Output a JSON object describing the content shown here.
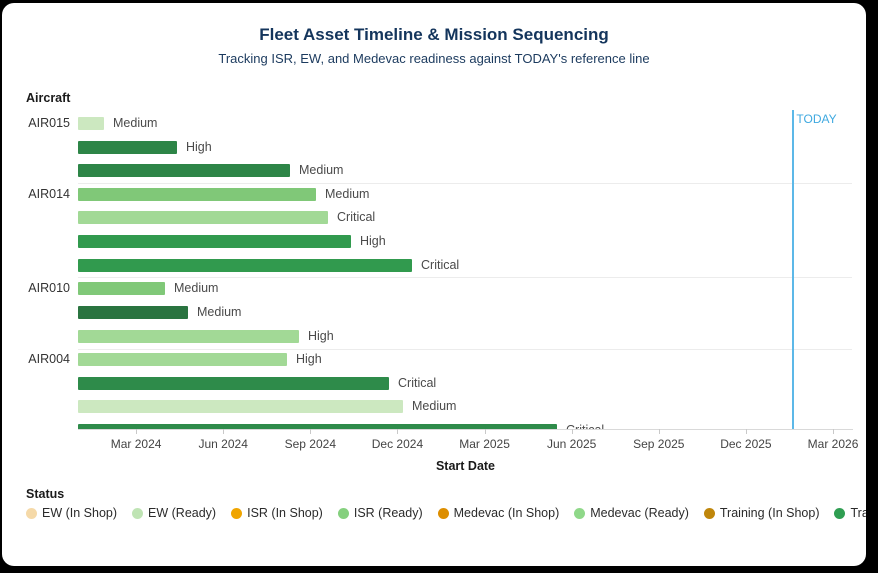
{
  "header": {
    "title": "Fleet Asset Timeline & Mission Sequencing",
    "subtitle": "Tracking ISR, EW, and Medevac readiness against TODAY's reference line",
    "title_color": "#14355c"
  },
  "chart_data": {
    "type": "bar",
    "variant": "horizontal-gantt-timeline",
    "title": "Fleet Asset Timeline & Mission Sequencing",
    "subtitle": "Tracking ISR, EW, and Medevac readiness against TODAY's reference line",
    "xlabel": "Start Date",
    "ylabel": "Aircraft",
    "grid": "off",
    "x_tick_labels": [
      "Mar 2024",
      "Jun 2024",
      "Sep 2024",
      "Dec 2024",
      "Mar 2025",
      "Jun 2025",
      "Sep 2025",
      "Dec 2025",
      "Mar 2026"
    ],
    "x_tick_months_from_2024_01": [
      2,
      5,
      8,
      11,
      14,
      17,
      20,
      23,
      26
    ],
    "x_domain": {
      "start": "2024-01-01",
      "end_approx": "2026-03-22"
    },
    "today_marker": {
      "label": "TODAY",
      "date_est": "2026-01-19",
      "month_offset": 24.6,
      "line_color": "#5cb8e8",
      "text_color": "#3fa9e0"
    },
    "groups": [
      {
        "aircraft": "AIR015",
        "bars": [
          {
            "label": "Medium",
            "status": "EW (Ready)",
            "start": "2024-01-01",
            "end_est": "2024-01-28",
            "duration_months": 0.9,
            "color": "#cce8c0"
          },
          {
            "label": "High",
            "status": "Training (Ready)",
            "start": "2024-01-01",
            "end_est": "2024-04-13",
            "duration_months": 3.4,
            "color": "#2d8547"
          },
          {
            "label": "Medium",
            "status": "Training (Ready)",
            "start": "2024-01-01",
            "end_est": "2024-08-10",
            "duration_months": 7.3,
            "color": "#2d8547"
          }
        ]
      },
      {
        "aircraft": "AIR014",
        "bars": [
          {
            "label": "Medium",
            "status": "ISR (Ready)",
            "start": "2024-01-01",
            "end_est": "2024-09-07",
            "duration_months": 8.2,
            "color": "#80c878"
          },
          {
            "label": "Critical",
            "status": "Medevac (Ready)",
            "start": "2024-01-01",
            "end_est": "2024-09-19",
            "duration_months": 8.6,
            "color": "#a2d996"
          },
          {
            "label": "High",
            "status": "Training (Ready)",
            "start": "2024-01-01",
            "end_est": "2024-10-13",
            "duration_months": 9.4,
            "color": "#319a4e"
          },
          {
            "label": "Critical",
            "status": "Training (Ready)",
            "start": "2024-01-01",
            "end_est": "2024-12-16",
            "duration_months": 11.5,
            "color": "#319a4e"
          }
        ]
      },
      {
        "aircraft": "AIR010",
        "bars": [
          {
            "label": "Medium",
            "status": "ISR (Ready)",
            "start": "2024-01-01",
            "end_est": "2024-04-01",
            "duration_months": 3.0,
            "color": "#80c878"
          },
          {
            "label": "Medium",
            "status": "Training (Ready)",
            "start": "2024-01-01",
            "end_est": "2024-04-25",
            "duration_months": 3.8,
            "color": "#2a7440"
          },
          {
            "label": "High",
            "status": "Medevac (Ready)",
            "start": "2024-01-01",
            "end_est": "2024-08-19",
            "duration_months": 7.6,
            "color": "#a2d996"
          }
        ]
      },
      {
        "aircraft": "AIR004",
        "bars": [
          {
            "label": "High",
            "status": "Medevac (Ready)",
            "start": "2024-01-01",
            "end_est": "2024-08-07",
            "duration_months": 7.2,
            "color": "#a2d996"
          },
          {
            "label": "Critical",
            "status": "Training (Ready)",
            "start": "2024-01-01",
            "end_est": "2024-11-22",
            "duration_months": 10.7,
            "color": "#2e8b4a"
          },
          {
            "label": "Medium",
            "status": "EW (Ready)",
            "start": "2024-01-01",
            "end_est": "2024-12-07",
            "duration_months": 11.2,
            "color": "#cce8c0"
          },
          {
            "label": "Critical",
            "status": "Training (Ready)",
            "start": "2024-01-01",
            "end_est": "2025-05-16",
            "duration_months": 16.5,
            "color": "#2e8b4a",
            "clipped_by_axis": true
          }
        ]
      }
    ],
    "legend": {
      "title": "Status",
      "position": "bottom",
      "items": [
        {
          "label": "EW (In Shop)",
          "color": "#f5d9a8"
        },
        {
          "label": "EW (Ready)",
          "color": "#bfe4b4"
        },
        {
          "label": "ISR (In Shop)",
          "color": "#f0a500"
        },
        {
          "label": "ISR (Ready)",
          "color": "#85d07e"
        },
        {
          "label": "Medevac (In Shop)",
          "color": "#dd8e00"
        },
        {
          "label": "Medevac (Ready)",
          "color": "#8fd889"
        },
        {
          "label": "Training (In Shop)",
          "color": "#bf860b"
        },
        {
          "label": "Training (Ready)",
          "color": "#2f9e52"
        }
      ]
    }
  }
}
